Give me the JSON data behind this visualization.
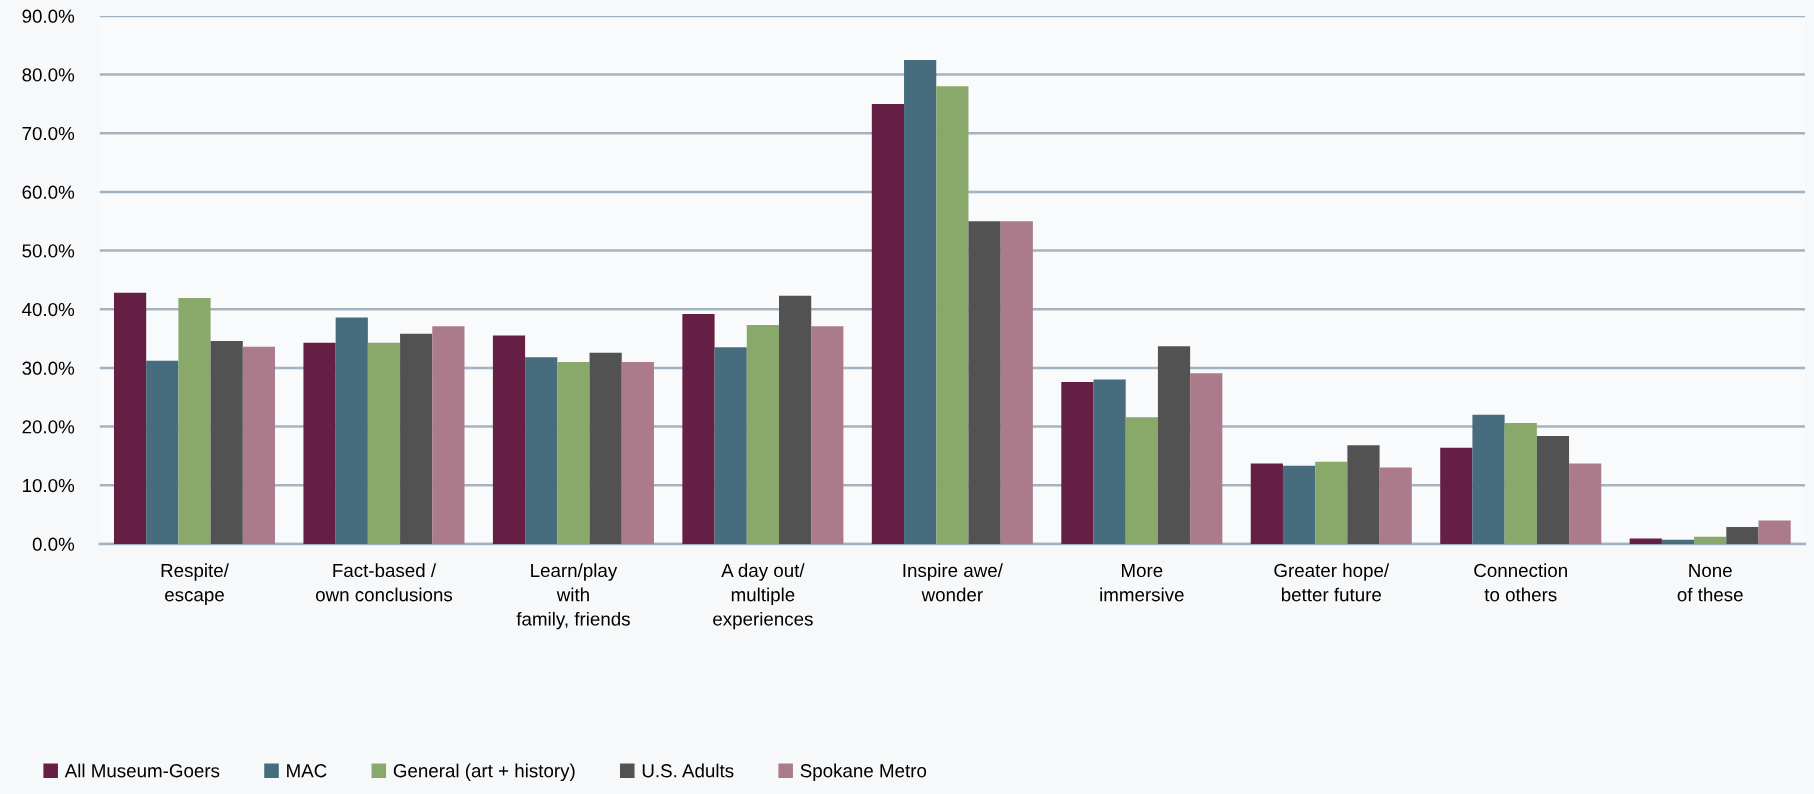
{
  "chart_data": {
    "type": "bar",
    "categories": [
      "Respite/\nescape",
      "Fact-based /\nown conclusions",
      "Learn/play\nwith\nfamily, friends",
      "A day out/\nmultiple\nexperiences",
      "Inspire awe/\nwonder",
      "More\nimmersive",
      "Greater hope/\nbetter future",
      "Connection\nto others",
      "None\nof these"
    ],
    "series": [
      {
        "name": "All Museum-Goers",
        "color": "#661f44",
        "values": [
          42.8,
          34.3,
          35.5,
          39.2,
          75.0,
          27.6,
          13.7,
          16.4,
          0.9
        ]
      },
      {
        "name": "MAC",
        "color": "#466c7d",
        "values": [
          31.2,
          38.6,
          31.8,
          33.5,
          82.5,
          28.0,
          13.3,
          22.0,
          0.7
        ]
      },
      {
        "name": "General (art + history)",
        "color": "#88a96a",
        "values": [
          41.9,
          34.3,
          31.0,
          37.3,
          78.0,
          21.6,
          14.0,
          20.6,
          1.2
        ]
      },
      {
        "name": "U.S. Adults",
        "color": "#525252",
        "values": [
          34.6,
          35.8,
          32.6,
          42.3,
          55.0,
          33.7,
          16.8,
          18.4,
          2.9
        ]
      },
      {
        "name": "Spokane Metro",
        "color": "#ab7a8b",
        "values": [
          33.6,
          37.1,
          31.0,
          37.1,
          55.0,
          29.1,
          13.0,
          13.7,
          4.0
        ]
      }
    ],
    "ylim": [
      0,
      90
    ],
    "yticks": [
      {
        "value": 0,
        "label": "0.0%"
      },
      {
        "value": 10,
        "label": "10.0%"
      },
      {
        "value": 20,
        "label": "20.0%"
      },
      {
        "value": 30,
        "label": "30.0%"
      },
      {
        "value": 40,
        "label": "40.0%"
      },
      {
        "value": 50,
        "label": "50.0%"
      },
      {
        "value": 60,
        "label": "60.0%"
      },
      {
        "value": 70,
        "label": "70.0%"
      },
      {
        "value": 80,
        "label": "80.0%"
      },
      {
        "value": 90,
        "label": "90.0%"
      }
    ],
    "grid": "y",
    "legend": "bottom left"
  }
}
